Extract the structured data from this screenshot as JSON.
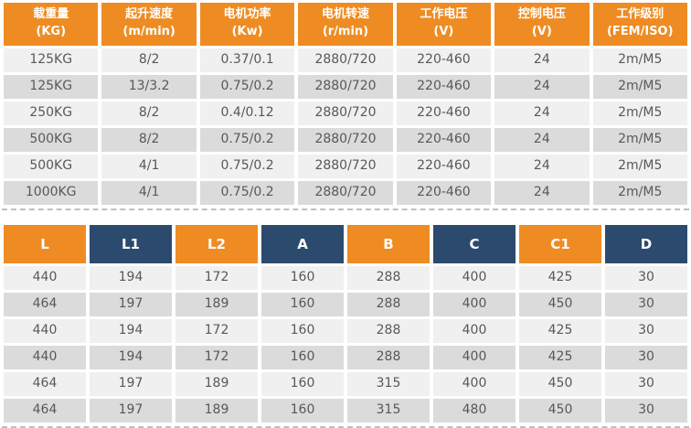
{
  "colors": {
    "header_orange": "#EE8C23",
    "header_navy": "#2C4A6E",
    "row_light": "#F0F0F1",
    "row_dark": "#DBDBDC",
    "cell_text": "#57585B",
    "header_text": "#FFFFFF"
  },
  "spec_table": {
    "headers": [
      {
        "line1": "载重量",
        "line2": "(KG)"
      },
      {
        "line1": "起升速度",
        "line2": "(m/min)"
      },
      {
        "line1": "电机功率",
        "line2": "(Kw)"
      },
      {
        "line1": "电机转速",
        "line2": "(r/min)"
      },
      {
        "line1": "工作电压",
        "line2": "(V)"
      },
      {
        "line1": "控制电压",
        "line2": "(V)"
      },
      {
        "line1": "工作级别",
        "line2": "(FEM/ISO)"
      }
    ],
    "rows": [
      [
        "125KG",
        "8/2",
        "0.37/0.1",
        "2880/720",
        "220-460",
        "24",
        "2m/M5"
      ],
      [
        "125KG",
        "13/3.2",
        "0.75/0.2",
        "2880/720",
        "220-460",
        "24",
        "2m/M5"
      ],
      [
        "250KG",
        "8/2",
        "0.4/0.12",
        "2880/720",
        "220-460",
        "24",
        "2m/M5"
      ],
      [
        "500KG",
        "8/2",
        "0.75/0.2",
        "2880/720",
        "220-460",
        "24",
        "2m/M5"
      ],
      [
        "500KG",
        "4/1",
        "0.75/0.2",
        "2880/720",
        "220-460",
        "24",
        "2m/M5"
      ],
      [
        "1000KG",
        "4/1",
        "0.75/0.2",
        "2880/720",
        "220-460",
        "24",
        "2m/M5"
      ]
    ]
  },
  "dimension_table": {
    "headers": [
      "L",
      "L1",
      "L2",
      "A",
      "B",
      "C",
      "C1",
      "D"
    ],
    "rows": [
      [
        "440",
        "194",
        "172",
        "160",
        "288",
        "400",
        "425",
        "30"
      ],
      [
        "464",
        "197",
        "189",
        "160",
        "288",
        "400",
        "450",
        "30"
      ],
      [
        "440",
        "194",
        "172",
        "160",
        "288",
        "400",
        "425",
        "30"
      ],
      [
        "440",
        "194",
        "172",
        "160",
        "288",
        "400",
        "425",
        "30"
      ],
      [
        "464",
        "197",
        "189",
        "160",
        "315",
        "400",
        "450",
        "30"
      ],
      [
        "464",
        "197",
        "189",
        "160",
        "315",
        "480",
        "450",
        "30"
      ]
    ]
  }
}
